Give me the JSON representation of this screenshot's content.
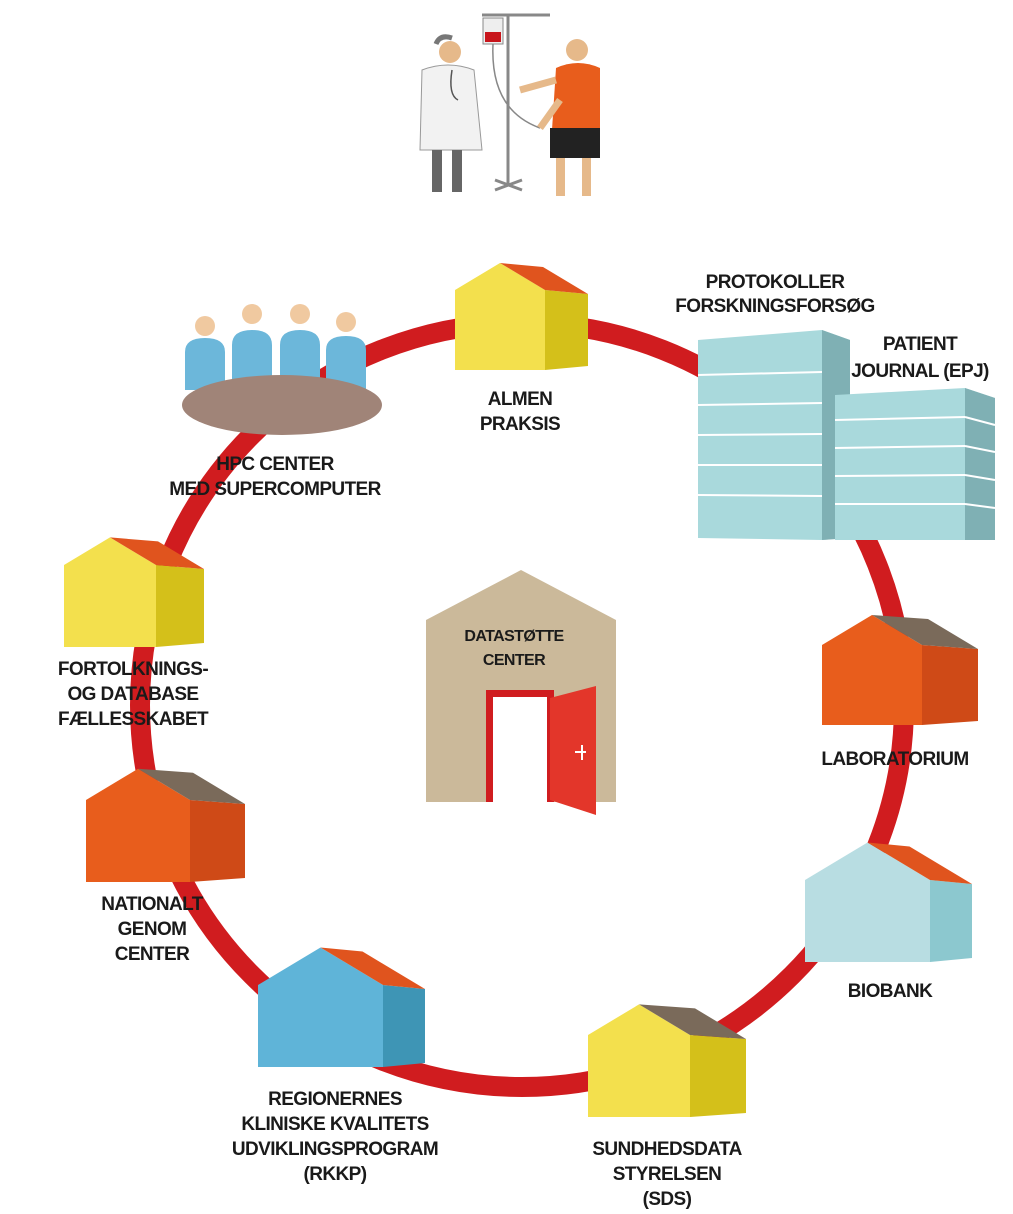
{
  "nodes": [
    {
      "label": [
        "ALMEN",
        "PRAKSIS"
      ]
    },
    {
      "label": [
        "PROTOKOLLER",
        "FORSKNINGSFORSØG"
      ]
    },
    {
      "label": [
        "PATIENT",
        "JOURNAL (EPJ)"
      ]
    },
    {
      "label": [
        "LABORATORIUM"
      ]
    },
    {
      "label": [
        "BIOBANK"
      ]
    },
    {
      "label": [
        "SUNDHEDSDATA",
        "STYRELSEN",
        "(SDS)"
      ]
    },
    {
      "label": [
        "REGIONERNES",
        "KLINISKE KVALITETS",
        "UDVIKLINGSPROGRAM",
        "(RKKP)"
      ]
    },
    {
      "label": [
        "NATIONALT",
        "GENOM",
        "CENTER"
      ]
    },
    {
      "label": [
        "HPC CENTER",
        "MED SUPERCOMPUTER"
      ]
    },
    {
      "label": [
        "FORTOLKNINGS-",
        "OG DATABASE",
        "FÆLLESSKABET"
      ]
    }
  ],
  "center": {
    "label": [
      "DATASTØTTE",
      "CENTER"
    ]
  }
}
